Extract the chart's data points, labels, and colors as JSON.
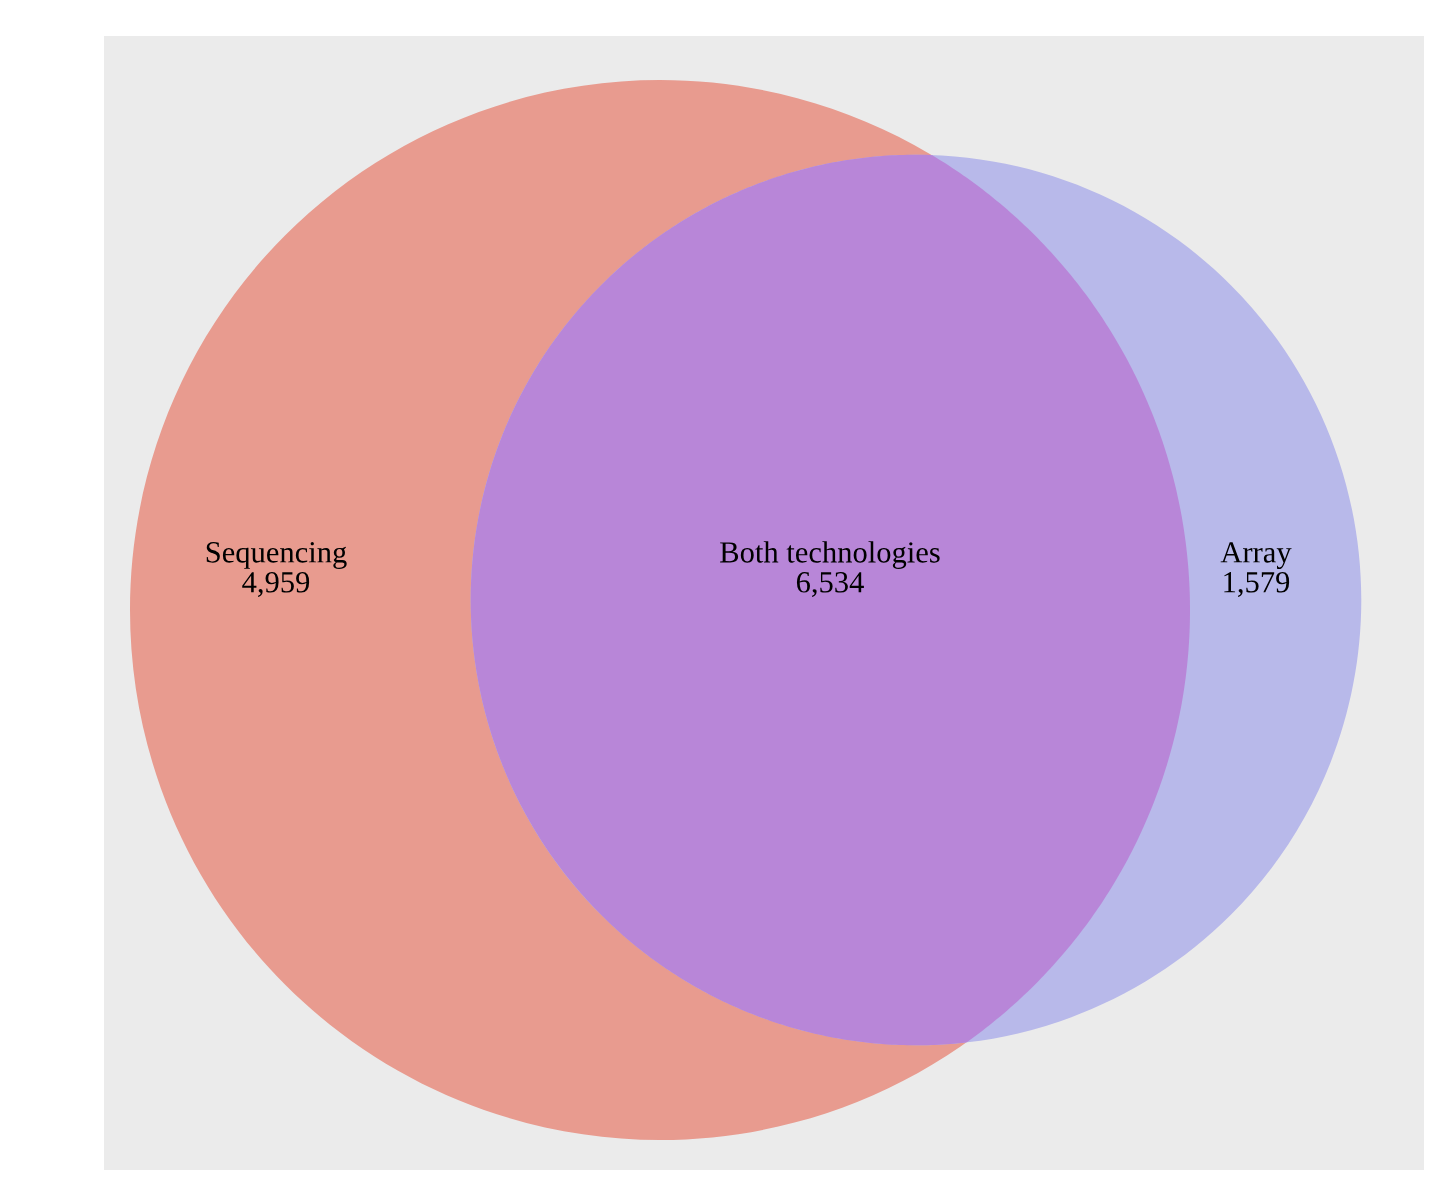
{
  "chart_data": {
    "type": "other",
    "categories": [
      "Sequencing",
      "Both technologies",
      "Array"
    ],
    "values": [
      4959,
      6534,
      1579
    ],
    "value_labels": [
      "4,959",
      "6,534",
      "1,579"
    ],
    "colors": [
      "#e89b8f",
      "#b886d8",
      "#b8b9ea"
    ]
  }
}
